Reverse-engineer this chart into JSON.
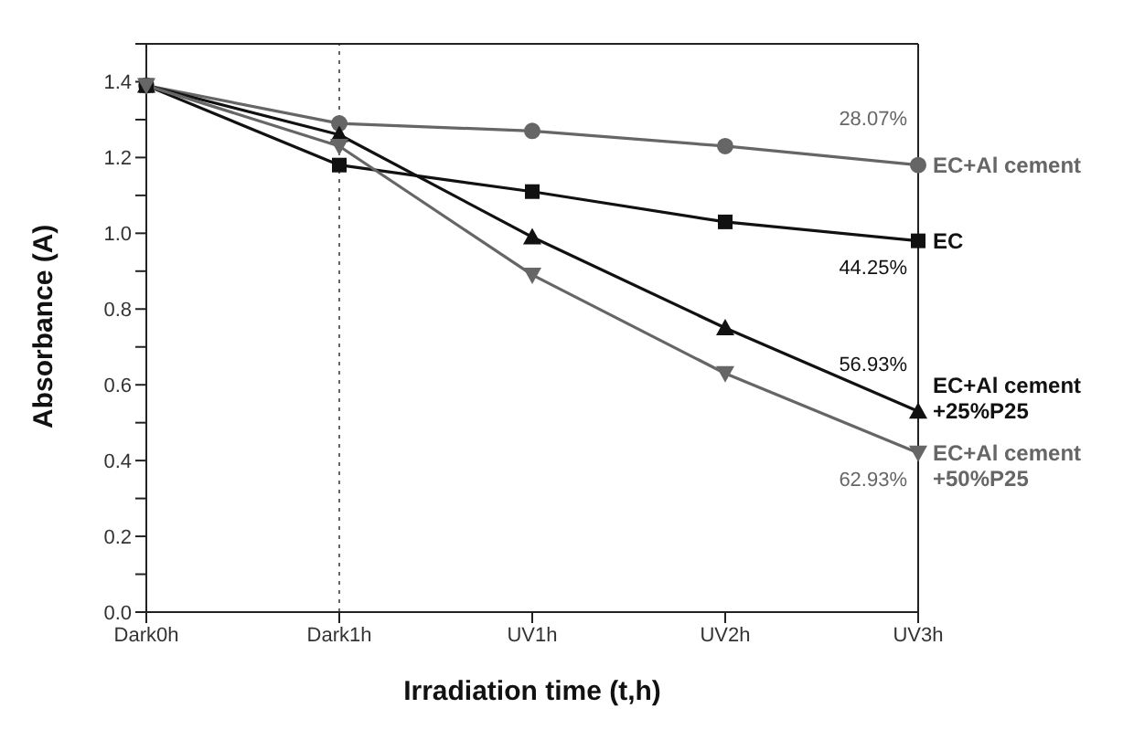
{
  "chart_data": {
    "type": "line",
    "xlabel": "Irradiation time (t,h)",
    "ylabel": "Absorbance (A)",
    "categories": [
      "Dark0h",
      "Dark1h",
      "UV1h",
      "UV2h",
      "UV3h"
    ],
    "series": [
      {
        "name": "EC+Al cement",
        "color": "#666666",
        "marker": "circle",
        "values": [
          1.39,
          1.29,
          1.27,
          1.23,
          1.18
        ]
      },
      {
        "name": "EC",
        "color": "#111111",
        "marker": "square",
        "values": [
          1.39,
          1.18,
          1.11,
          1.03,
          0.98
        ]
      },
      {
        "name": "EC+Al cement +25%P25",
        "color": "#111111",
        "marker": "triangle",
        "values": [
          1.39,
          1.26,
          0.99,
          0.75,
          0.53
        ]
      },
      {
        "name": "EC+Al cement +50%P25",
        "color": "#666666",
        "marker": "triangle-down",
        "values": [
          1.39,
          1.23,
          0.89,
          0.63,
          0.42
        ]
      }
    ],
    "ylim": [
      0,
      1.5
    ],
    "yticks": [
      {
        "value": 0,
        "label": "0.0"
      },
      {
        "value": 0.1,
        "label": null
      },
      {
        "value": 0.2,
        "label": "0.2"
      },
      {
        "value": 0.3,
        "label": null
      },
      {
        "value": 0.4,
        "label": "0.4"
      },
      {
        "value": 0.5,
        "label": null
      },
      {
        "value": 0.6,
        "label": "0.6"
      },
      {
        "value": 0.7,
        "label": null
      },
      {
        "value": 0.8,
        "label": "0.8"
      },
      {
        "value": 0.9,
        "label": null
      },
      {
        "value": 1,
        "label": "1.0"
      },
      {
        "value": 1.1,
        "label": null
      },
      {
        "value": 1.2,
        "label": "1.2"
      },
      {
        "value": 1.3,
        "label": null
      },
      {
        "value": 1.4,
        "label": "1.4"
      },
      {
        "value": 1.5,
        "label": null
      }
    ],
    "ref_lines": [
      {
        "axis": "x",
        "value": "Dark1h",
        "color": "#666666",
        "line_style": "dotted"
      }
    ],
    "annotations": [
      {
        "text": "28.07%",
        "x": "UV3h",
        "y": 1.18
      },
      {
        "text": "44.25%",
        "x": "UV3h",
        "y": 0.98
      },
      {
        "text": "56.93%",
        "x": "UV3h",
        "y": 0.53
      },
      {
        "text": "62.93%",
        "x": "UV3h",
        "y": 0.42
      }
    ],
    "grid": false,
    "legend": false
  }
}
